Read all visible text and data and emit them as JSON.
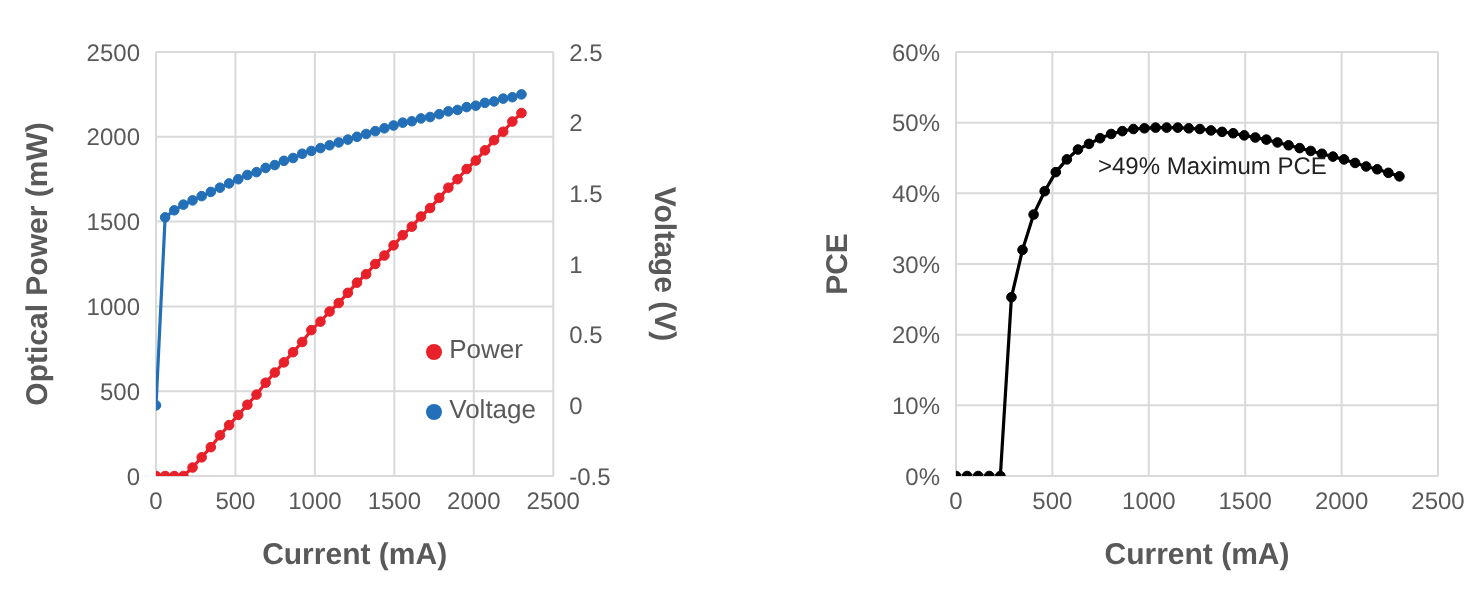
{
  "chart_data": [
    {
      "type": "line",
      "xlabel": "Current (mA)",
      "ylabel": "Optical Power (mW)",
      "y2label": "Voltage (V)",
      "xlim": [
        0,
        2500
      ],
      "xticks": [
        0,
        500,
        1000,
        1500,
        2000,
        2500
      ],
      "ylim": [
        0,
        2500
      ],
      "yticks": [
        0,
        500,
        1000,
        1500,
        2000,
        2500
      ],
      "y2lim": [
        -0.5,
        2.5
      ],
      "y2ticks": [
        -0.5,
        0,
        0.5,
        1,
        1.5,
        2,
        2.5
      ],
      "grid": true,
      "legend": "bottom right",
      "marker": "circle",
      "line_style": "solid",
      "x": [
        0,
        57.5,
        115,
        172.5,
        230,
        287.5,
        345,
        402.5,
        460,
        517.5,
        575,
        632.5,
        690,
        747.5,
        805,
        862.5,
        920,
        977.5,
        1035,
        1092.5,
        1150,
        1207.5,
        1265,
        1322.5,
        1380,
        1437.5,
        1495,
        1552.5,
        1610,
        1667.5,
        1725,
        1782.5,
        1840,
        1897.5,
        1955,
        2012.5,
        2070,
        2127.5,
        2185,
        2242.5,
        2300
      ],
      "series": [
        {
          "name": "Power",
          "color": "#e8202a",
          "values": [
            0,
            0,
            0,
            0,
            50,
            110,
            170,
            240,
            300,
            360,
            420,
            480,
            550,
            610,
            670,
            730,
            790,
            860,
            910,
            970,
            1020,
            1080,
            1140,
            1190,
            1250,
            1300,
            1360,
            1420,
            1470,
            1530,
            1580,
            1640,
            1700,
            1750,
            1810,
            1860,
            1920,
            1980,
            2030,
            2090,
            2140
          ]
        },
        {
          "name": "Voltage",
          "color": "#2470b8",
          "axis": "y2",
          "values": [
            0,
            1.33,
            1.38,
            1.42,
            1.45,
            1.48,
            1.51,
            1.54,
            1.57,
            1.6,
            1.63,
            1.65,
            1.68,
            1.7,
            1.73,
            1.75,
            1.78,
            1.8,
            1.82,
            1.84,
            1.86,
            1.88,
            1.9,
            1.92,
            1.94,
            1.96,
            1.98,
            2,
            2.01,
            2.03,
            2.04,
            2.06,
            2.08,
            2.09,
            2.11,
            2.12,
            2.14,
            2.15,
            2.17,
            2.18,
            2.2
          ]
        }
      ]
    },
    {
      "type": "line",
      "xlabel": "Current (mA)",
      "ylabel": "PCE",
      "xlim": [
        0,
        2500
      ],
      "xticks": [
        0,
        500,
        1000,
        1500,
        2000,
        2500
      ],
      "ylim": [
        0,
        60
      ],
      "yticks": [
        {
          "value": 0,
          "label": "0%"
        },
        {
          "value": 10,
          "label": "10%"
        },
        {
          "value": 20,
          "label": "20%"
        },
        {
          "value": 30,
          "label": "30%"
        },
        {
          "value": 40,
          "label": "40%"
        },
        {
          "value": 50,
          "label": "50%"
        },
        {
          "value": 60,
          "label": "60%"
        }
      ],
      "grid": true,
      "marker": "circle",
      "line_style": "solid",
      "annotations": [
        ">49% Maximum PCE"
      ],
      "x": [
        0,
        57.5,
        115,
        172.5,
        230,
        287.5,
        345,
        402.5,
        460,
        517.5,
        575,
        632.5,
        690,
        747.5,
        805,
        862.5,
        920,
        977.5,
        1035,
        1092.5,
        1150,
        1207.5,
        1265,
        1322.5,
        1380,
        1437.5,
        1495,
        1552.5,
        1610,
        1667.5,
        1725,
        1782.5,
        1840,
        1897.5,
        1955,
        2012.5,
        2070,
        2127.5,
        2185,
        2242.5,
        2300
      ],
      "series": [
        {
          "color": "#000000",
          "values": [
            0,
            0,
            0,
            0,
            0,
            25.3,
            32,
            37,
            40.3,
            43,
            44.8,
            46.2,
            47,
            47.8,
            48.4,
            48.8,
            49.1,
            49.2,
            49.3,
            49.3,
            49.3,
            49.2,
            49.1,
            48.9,
            48.7,
            48.5,
            48.2,
            47.9,
            47.6,
            47.2,
            46.8,
            46.4,
            46,
            45.6,
            45.2,
            44.8,
            44.3,
            43.8,
            43.4,
            42.9,
            42.4
          ]
        }
      ]
    }
  ]
}
